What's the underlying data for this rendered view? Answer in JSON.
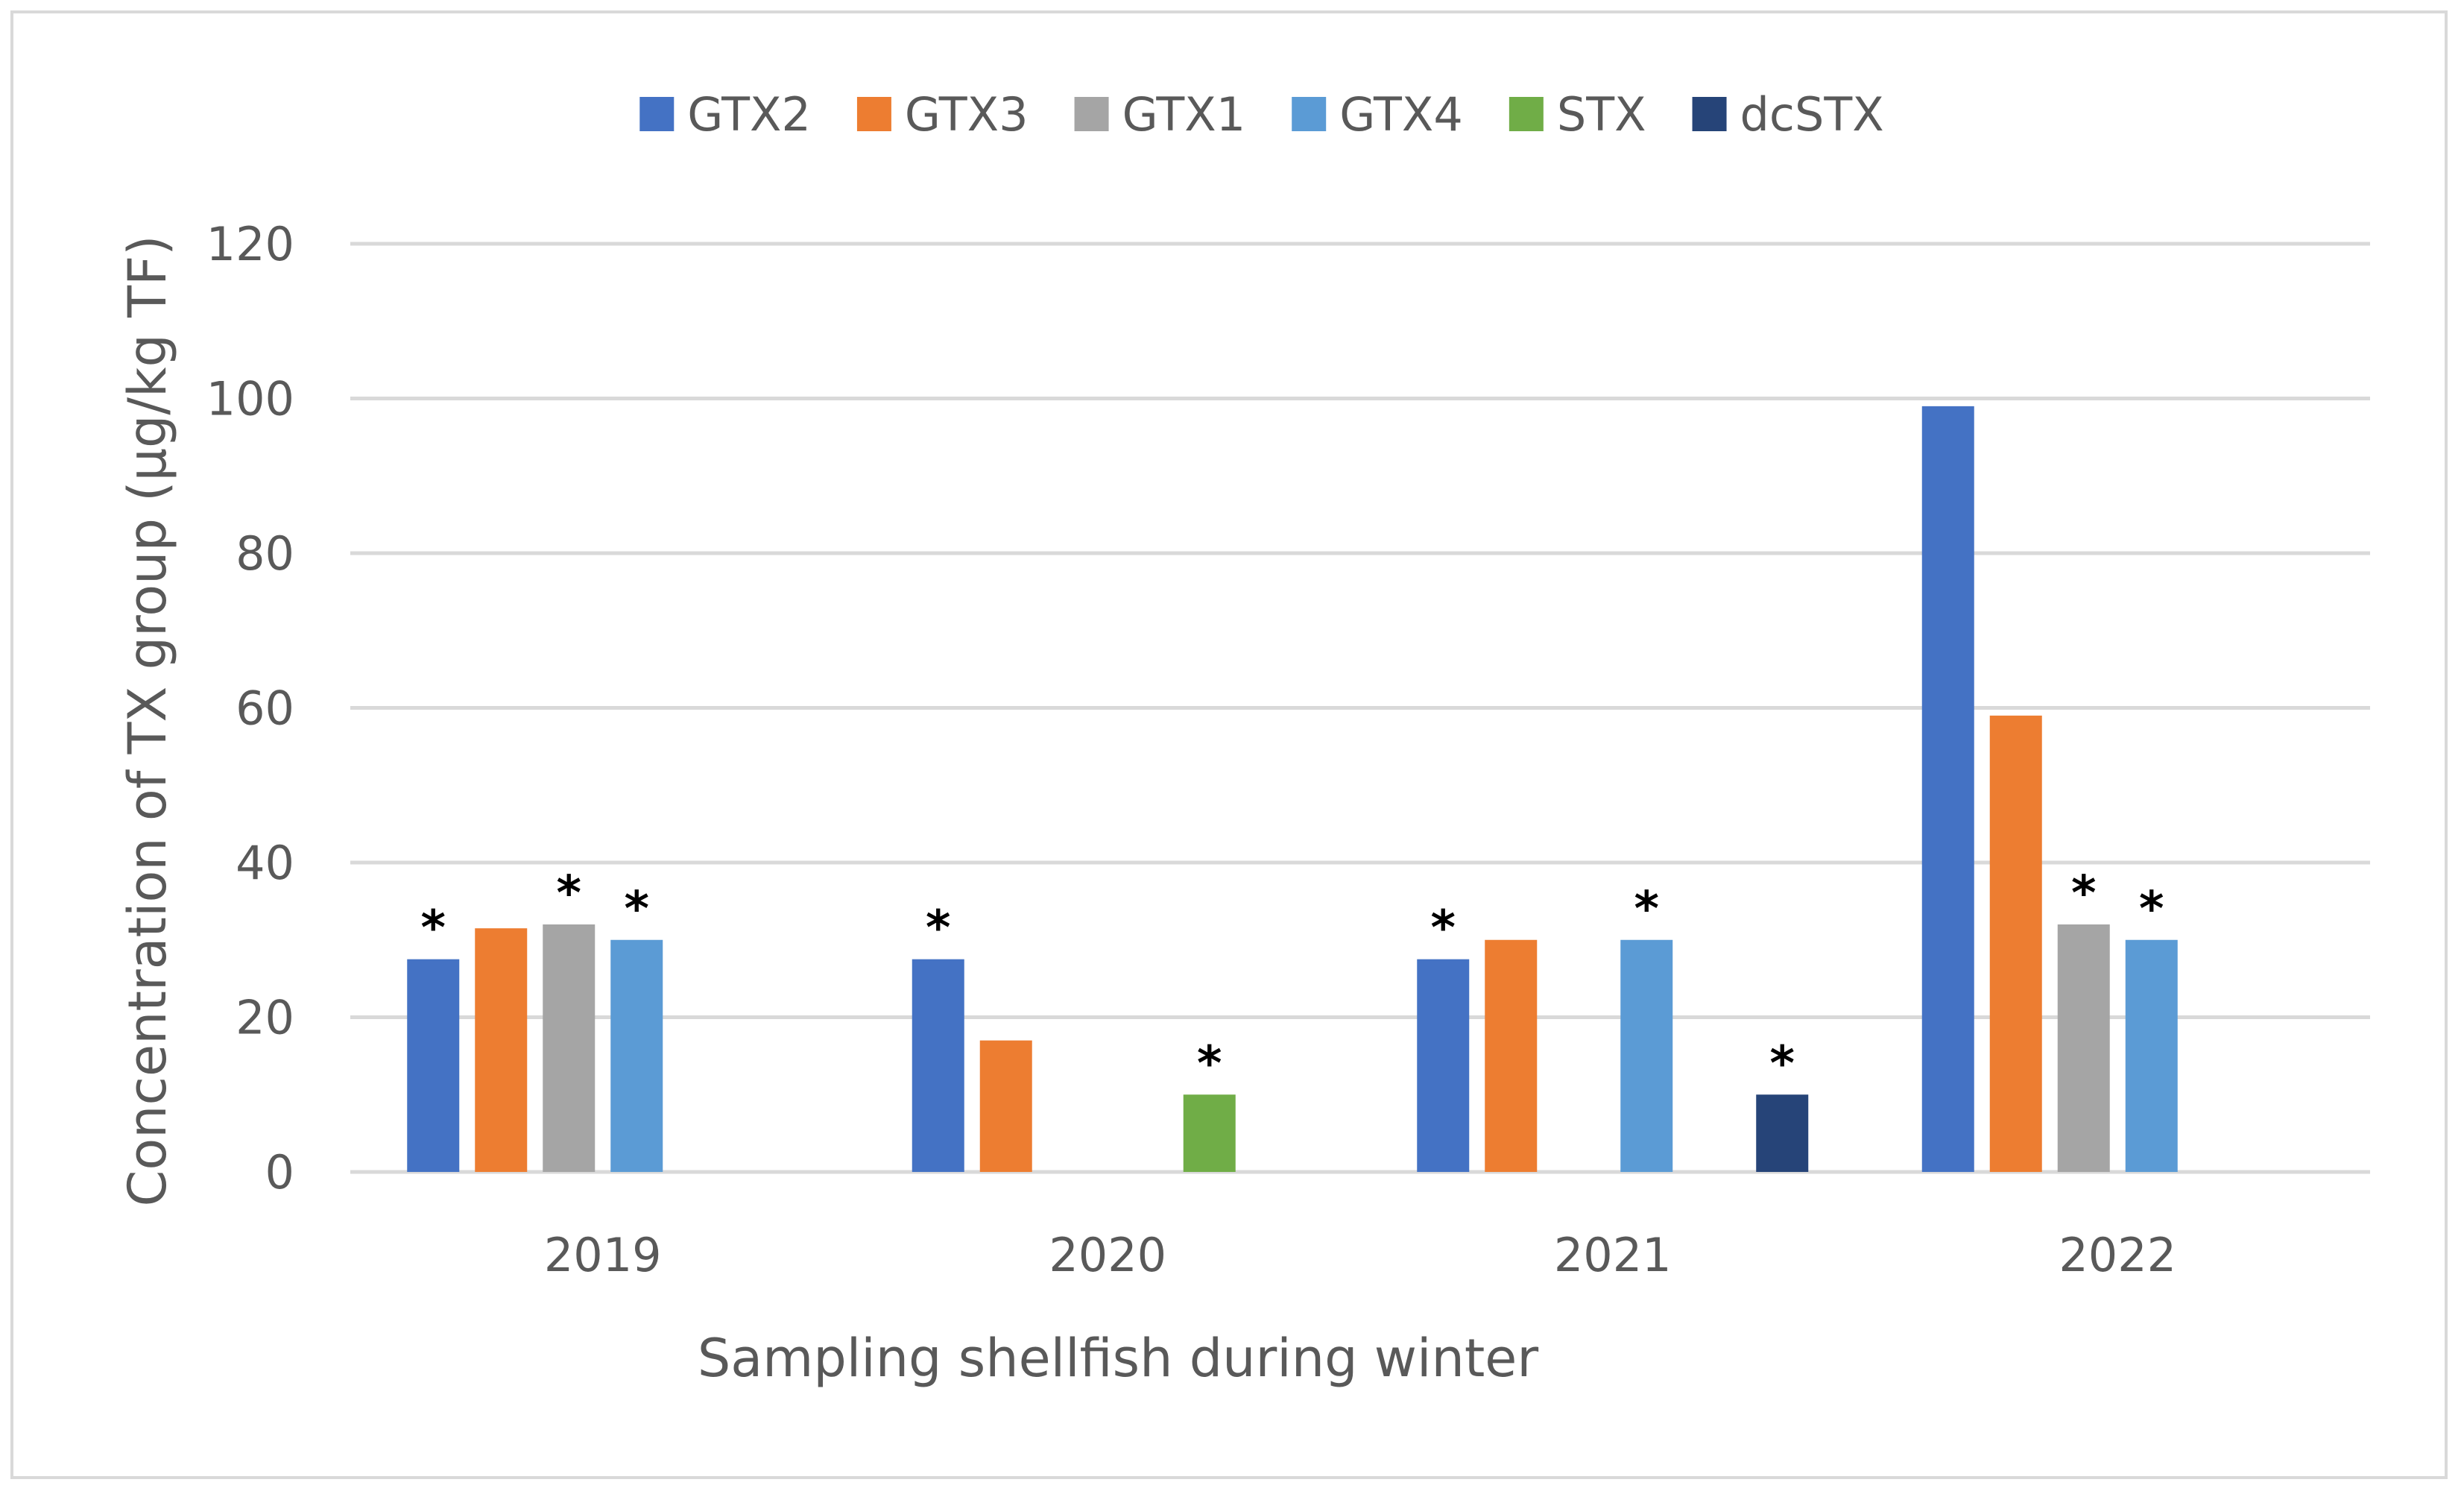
{
  "chart_data": {
    "type": "bar",
    "title": "",
    "xlabel": "Sampling shellfish during winter",
    "ylabel": "Concentration of TX group (µg/kg TF)",
    "ylim": [
      0,
      120
    ],
    "yticks": [
      "0",
      "20",
      "40",
      "60",
      "80",
      "100",
      "120"
    ],
    "grid": true,
    "legend_position": "top",
    "categories": [
      "2019",
      "2020",
      "2021",
      "2022"
    ],
    "series": [
      {
        "name": "GTX2",
        "color": "#4472c4",
        "values": [
          27.5,
          27.5,
          27.5,
          99
        ],
        "asterisk": [
          true,
          true,
          true,
          false
        ]
      },
      {
        "name": "GTX3",
        "color": "#ed7d31",
        "values": [
          31.5,
          17,
          30,
          59
        ],
        "asterisk": [
          false,
          false,
          false,
          false
        ]
      },
      {
        "name": "GTX1",
        "color": "#a5a5a5",
        "values": [
          32,
          null,
          null,
          32
        ],
        "asterisk": [
          true,
          false,
          false,
          true
        ]
      },
      {
        "name": "GTX4",
        "color": "#5b9bd5",
        "values": [
          30,
          null,
          30,
          30
        ],
        "asterisk": [
          true,
          false,
          true,
          true
        ]
      },
      {
        "name": "STX",
        "color": "#70ad47",
        "values": [
          null,
          10,
          null,
          null
        ],
        "asterisk": [
          false,
          true,
          false,
          false
        ]
      },
      {
        "name": "dcSTX",
        "color": "#264478",
        "values": [
          null,
          null,
          10,
          null
        ],
        "asterisk": [
          false,
          false,
          true,
          false
        ]
      }
    ],
    "asterisk_symbol": "*"
  }
}
